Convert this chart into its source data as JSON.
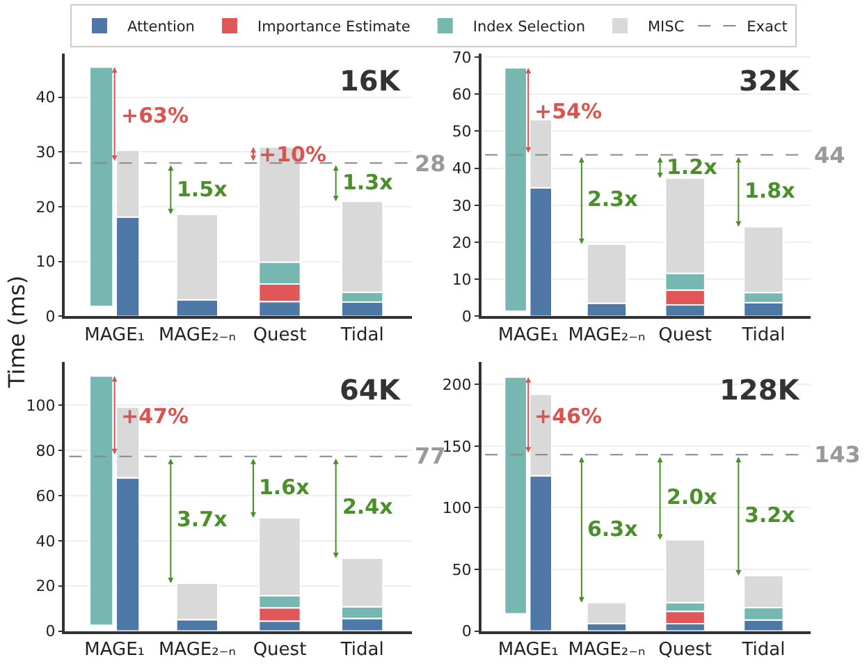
{
  "chart_data": [
    {
      "type": "bar",
      "title": "16K",
      "ylabel": "Time (ms)",
      "legend": "top",
      "grid": "y",
      "categories": [
        "MAGE₁",
        "MAGE₂₋ₙ",
        "Quest",
        "Tidal"
      ],
      "ylim": [
        0,
        48
      ],
      "yticks": [
        0,
        10,
        20,
        30,
        40
      ],
      "series": [
        {
          "name": "Attention",
          "color": "#4e79a7",
          "values": [
            18.1,
            3.0,
            2.7,
            2.6
          ],
          "base": [
            0,
            0,
            0,
            0
          ]
        },
        {
          "name": "Importance Estimate",
          "color": "#e15759",
          "values": [
            null,
            null,
            3.2,
            null
          ],
          "base": [
            null,
            null,
            2.7,
            null
          ]
        },
        {
          "name": "Index Selection",
          "color": "#76b7b2",
          "values": [
            null,
            null,
            4.0,
            1.8
          ],
          "base": [
            null,
            null,
            5.9,
            2.6
          ]
        },
        {
          "name": "MISC",
          "color": "#d9d9d9",
          "values": [
            12.2,
            15.6,
            21.0,
            16.6
          ],
          "base": [
            18.1,
            3.0,
            9.9,
            4.4
          ]
        },
        {
          "color": "#76b7b2",
          "values": [
            43.7,
            null,
            null,
            null
          ],
          "base": [
            1.8,
            null,
            null,
            null
          ]
        }
      ],
      "ref_lines": [
        {
          "axis": "y",
          "value": 28,
          "label": "Exact",
          "color": "#888888",
          "line_style": "dashed"
        }
      ],
      "annotations": [
        {
          "text": "+63%",
          "x": "MAGE₁",
          "y": 45.5
        },
        {
          "text": "1.5x",
          "x": "MAGE₂₋ₙ",
          "y": 18.6
        },
        {
          "text": "+10%",
          "x": "Quest",
          "y": 30.9
        },
        {
          "text": "1.3x",
          "x": "Tidal",
          "y": 21.0
        },
        "28"
      ]
    },
    {
      "type": "bar",
      "title": "32K",
      "grid": "y",
      "categories": [
        "MAGE₁",
        "MAGE₂₋ₙ",
        "Quest",
        "Tidal"
      ],
      "ylim": [
        0,
        71
      ],
      "yticks": [
        0,
        10,
        20,
        30,
        40,
        50,
        60,
        70
      ],
      "series": [
        {
          "name": "Attention",
          "color": "#4e79a7",
          "values": [
            34.7,
            3.5,
            3.1,
            3.7
          ],
          "base": [
            0,
            0,
            0,
            0
          ]
        },
        {
          "name": "Importance Estimate",
          "color": "#e15759",
          "values": [
            null,
            null,
            4.0,
            null
          ],
          "base": [
            null,
            null,
            3.1,
            null
          ]
        },
        {
          "name": "Index Selection",
          "color": "#76b7b2",
          "values": [
            null,
            null,
            4.5,
            2.7
          ],
          "base": [
            null,
            null,
            7.1,
            3.7
          ]
        },
        {
          "name": "MISC",
          "color": "#d9d9d9",
          "values": [
            18.4,
            16.0,
            25.7,
            17.8
          ],
          "base": [
            34.7,
            3.5,
            11.6,
            6.4
          ]
        },
        {
          "color": "#76b7b2",
          "values": [
            65.7,
            null,
            null,
            null
          ],
          "base": [
            1.4,
            null,
            null,
            null
          ]
        }
      ],
      "ref_lines": [
        {
          "axis": "y",
          "value": 43.6,
          "color": "#888888",
          "line_style": "dashed"
        }
      ],
      "annotations": [
        {
          "text": "+54%",
          "x": "MAGE₁",
          "y": 67.1
        },
        {
          "text": "2.3x",
          "x": "MAGE₂₋ₙ",
          "y": 19.5
        },
        {
          "text": "1.2x",
          "x": "Quest",
          "y": 37.3
        },
        {
          "text": "1.8x",
          "x": "Tidal",
          "y": 24.2
        },
        "44"
      ]
    },
    {
      "type": "bar",
      "title": "64K",
      "grid": "y",
      "categories": [
        "MAGE₁",
        "MAGE₂₋ₙ",
        "Quest",
        "Tidal"
      ],
      "ylim": [
        0,
        119
      ],
      "yticks": [
        0,
        20,
        40,
        60,
        80,
        100
      ],
      "series": [
        {
          "name": "Attention",
          "color": "#4e79a7",
          "values": [
            67.8,
            5.0,
            4.4,
            5.6
          ],
          "base": [
            0,
            0,
            0,
            0
          ]
        },
        {
          "name": "Importance Estimate",
          "color": "#e15759",
          "values": [
            null,
            null,
            5.9,
            null
          ],
          "base": [
            null,
            null,
            4.4,
            null
          ]
        },
        {
          "name": "Index Selection",
          "color": "#76b7b2",
          "values": [
            null,
            null,
            5.4,
            5.1
          ],
          "base": [
            null,
            null,
            10.3,
            5.6
          ]
        },
        {
          "name": "MISC",
          "color": "#d9d9d9",
          "values": [
            31.4,
            16.1,
            34.4,
            21.5
          ],
          "base": [
            67.8,
            5.0,
            15.7,
            10.7
          ]
        },
        {
          "color": "#76b7b2",
          "values": [
            110.3,
            null,
            null,
            null
          ],
          "base": [
            2.6,
            null,
            null,
            null
          ]
        }
      ],
      "ref_lines": [
        {
          "axis": "y",
          "value": 77.3,
          "color": "#888888",
          "line_style": "dashed"
        }
      ],
      "annotations": [
        {
          "text": "+47%",
          "x": "MAGE₁",
          "y": 112.9
        },
        {
          "text": "3.7x",
          "x": "MAGE₂₋ₙ",
          "y": 21.1
        },
        {
          "text": "1.6x",
          "x": "Quest",
          "y": 50.1
        },
        {
          "text": "2.4x",
          "x": "Tidal",
          "y": 32.2
        },
        "77"
      ]
    },
    {
      "type": "bar",
      "title": "128K",
      "grid": "y",
      "categories": [
        "MAGE₁",
        "MAGE₂₋ₙ",
        "Quest",
        "Tidal"
      ],
      "ylim": [
        0,
        218
      ],
      "yticks": [
        0,
        50,
        100,
        150,
        200
      ],
      "series": [
        {
          "name": "Attention",
          "color": "#4e79a7",
          "values": [
            126,
            6,
            6,
            9
          ],
          "base": [
            0,
            0,
            0,
            0
          ]
        },
        {
          "name": "Importance Estimate",
          "color": "#e15759",
          "values": [
            null,
            null,
            10,
            null
          ],
          "base": [
            null,
            null,
            6,
            null
          ]
        },
        {
          "name": "Index Selection",
          "color": "#76b7b2",
          "values": [
            null,
            null,
            7,
            10
          ],
          "base": [
            null,
            null,
            16,
            9
          ]
        },
        {
          "name": "MISC",
          "color": "#d9d9d9",
          "values": [
            66,
            17,
            51,
            26
          ],
          "base": [
            126,
            6,
            23,
            19
          ]
        },
        {
          "color": "#76b7b2",
          "values": [
            192,
            null,
            null,
            null
          ],
          "base": [
            14,
            null,
            null,
            null
          ]
        }
      ],
      "ref_lines": [
        {
          "axis": "y",
          "value": 143,
          "color": "#888888",
          "line_style": "dashed"
        }
      ],
      "annotations": [
        {
          "text": "+46%",
          "x": "MAGE₁",
          "y": 206
        },
        {
          "text": "6.3x",
          "x": "MAGE₂₋ₙ",
          "y": 23
        },
        {
          "text": "2.0x",
          "x": "Quest",
          "y": 74
        },
        {
          "text": "3.2x",
          "x": "Tidal",
          "y": 45
        },
        "143"
      ]
    }
  ]
}
